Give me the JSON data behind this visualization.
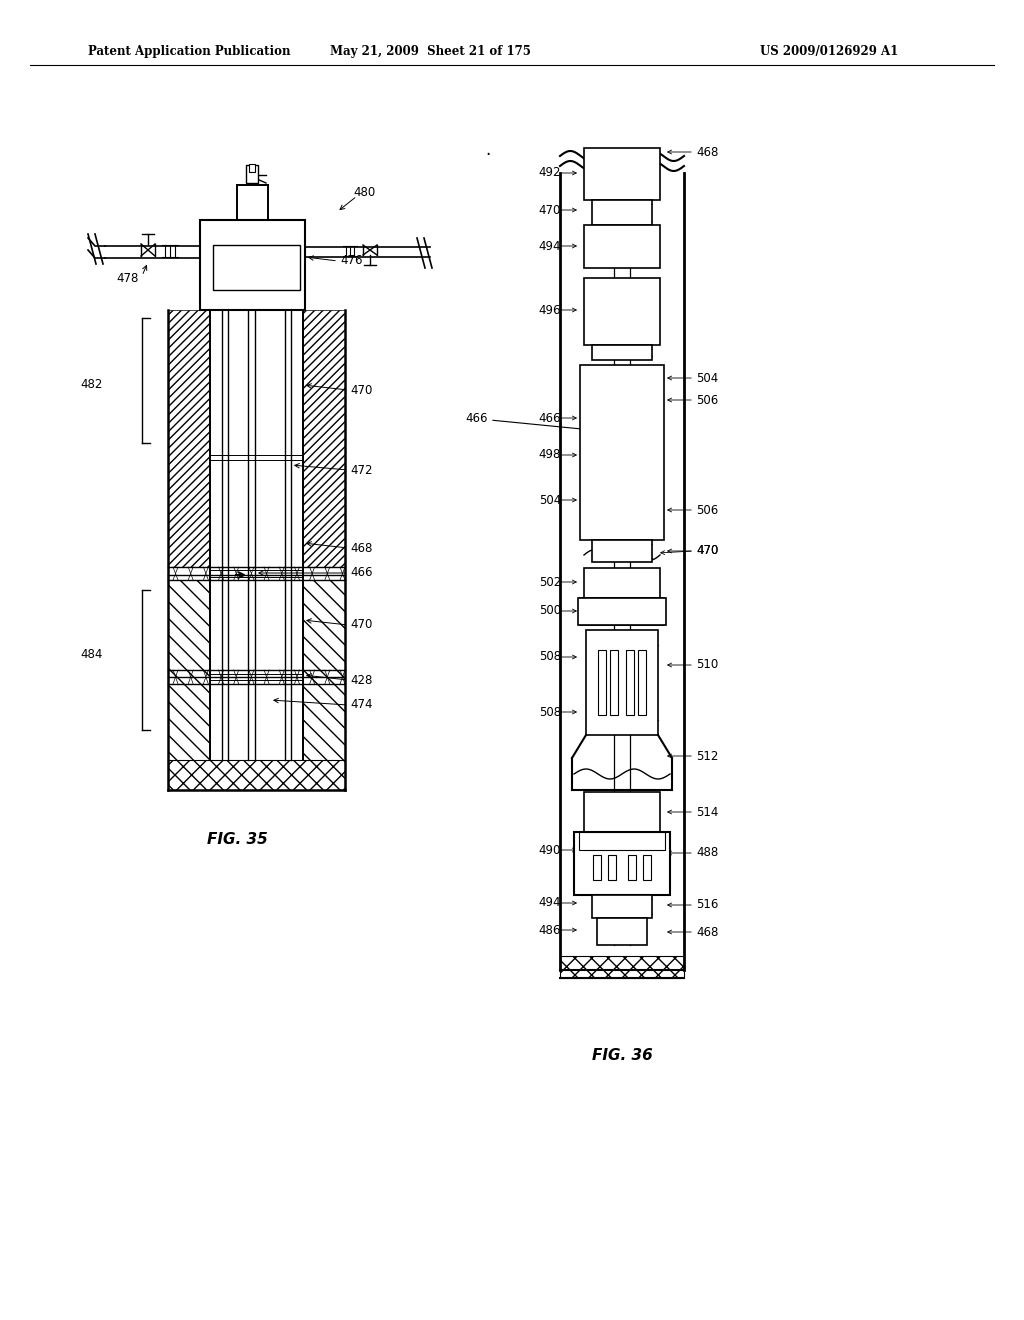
{
  "title_left": "Patent Application Publication",
  "title_center": "May 21, 2009  Sheet 21 of 175",
  "title_right": "US 2009/0126929 A1",
  "fig35_label": "FIG. 35",
  "fig36_label": "FIG. 36",
  "bg_color": "#ffffff",
  "line_color": "#000000"
}
